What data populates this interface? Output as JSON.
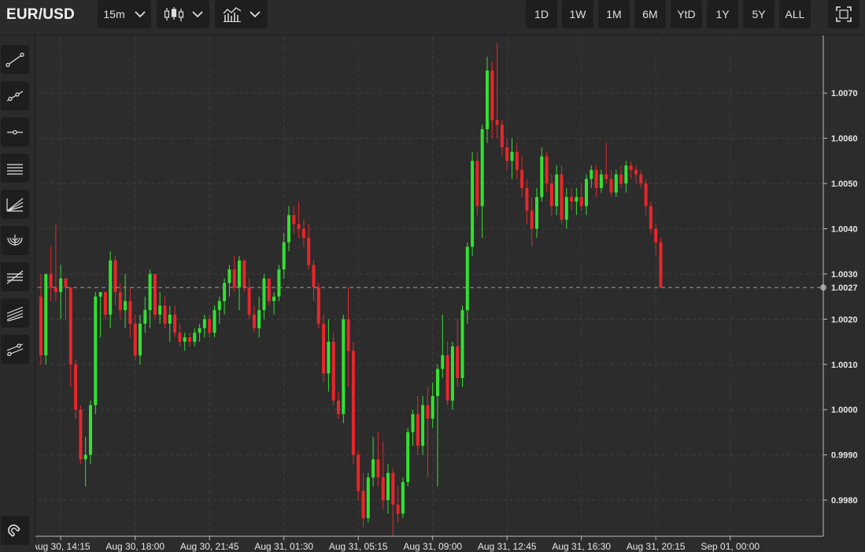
{
  "header": {
    "symbol": "EUR/USD",
    "interval": "15m",
    "chart_type_icon": "candlestick-icon",
    "indicators_icon": "indicators-icon",
    "ranges": [
      "1D",
      "1W",
      "1M",
      "6M",
      "YtD",
      "1Y",
      "5Y",
      "ALL"
    ],
    "fullscreen_icon": "fullscreen-icon"
  },
  "sidebar": {
    "tools": [
      "trend-line-icon",
      "ray-icon",
      "horizontal-line-icon",
      "parallel-channel-icon",
      "fib-fan-icon",
      "fib-arc-icon",
      "fib-retracement-icon",
      "fib-channel-icon",
      "regression-trend-icon"
    ],
    "magnet_icon": "magnet-icon"
  },
  "colors": {
    "up": "#32e132",
    "down": "#e8262b",
    "background": "#2c2c2c",
    "grid": "#3e3e3e",
    "price_line": "#8a8a8a"
  },
  "chart_data": {
    "type": "candlestick",
    "title": "EUR/USD",
    "interval": "15m",
    "last_price": "1.0027",
    "last_price_value": 1.0027,
    "ylim": [
      0.9972,
      1.0081
    ],
    "y_ticks": [
      {
        "value": 0.998,
        "label": "0.9980"
      },
      {
        "value": 0.999,
        "label": "0.9990"
      },
      {
        "value": 1.0,
        "label": "1.0000"
      },
      {
        "value": 1.001,
        "label": "1.0010"
      },
      {
        "value": 1.002,
        "label": "1.0020"
      },
      {
        "value": 1.003,
        "label": "1.0030"
      },
      {
        "value": 1.004,
        "label": "1.0040"
      },
      {
        "value": 1.005,
        "label": "1.0050"
      },
      {
        "value": 1.006,
        "label": "1.0060"
      },
      {
        "value": 1.007,
        "label": "1.0070"
      }
    ],
    "x_ticks": [
      {
        "index": 4,
        "label": "Aug 30, 14:15"
      },
      {
        "index": 19,
        "label": "Aug 30, 18:00"
      },
      {
        "index": 34,
        "label": "Aug 30, 21:45"
      },
      {
        "index": 49,
        "label": "Aug 31, 01:30"
      },
      {
        "index": 64,
        "label": "Aug 31, 05:15"
      },
      {
        "index": 79,
        "label": "Aug 31, 09:00"
      },
      {
        "index": 94,
        "label": "Aug 31, 12:45"
      },
      {
        "index": 109,
        "label": "Aug 31, 16:30"
      },
      {
        "index": 124,
        "label": "Aug 31, 20:15"
      },
      {
        "index": 139,
        "label": "Sep 01, 00:00"
      }
    ],
    "grid": true,
    "candles": [
      [
        1.0025,
        1.003,
        1.001,
        1.0012
      ],
      [
        1.0012,
        1.003,
        1.001,
        1.003
      ],
      [
        1.003,
        1.0036,
        1.0024,
        1.0027
      ],
      [
        1.0027,
        1.0041,
        1.0024,
        1.0026
      ],
      [
        1.0026,
        1.0032,
        1.002,
        1.0029
      ],
      [
        1.0029,
        1.0029,
        1.002,
        1.0027
      ],
      [
        1.0027,
        1.0027,
        1.0005,
        1.001
      ],
      [
        1.001,
        1.0011,
        0.9998,
        1.0
      ],
      [
        1.0,
        1.0001,
        0.9988,
        0.9989
      ],
      [
        0.9989,
        0.9994,
        0.9983,
        0.999
      ],
      [
        0.999,
        1.0002,
        0.9988,
        1.0001
      ],
      [
        1.0001,
        1.0026,
        0.9999,
        1.0025
      ],
      [
        1.0025,
        1.0026,
        1.0016,
        1.0026
      ],
      [
        1.0026,
        1.0026,
        1.002,
        1.0021
      ],
      [
        1.0021,
        1.0035,
        1.0018,
        1.0033
      ],
      [
        1.0033,
        1.0034,
        1.0023,
        1.0026
      ],
      [
        1.0026,
        1.0028,
        1.002,
        1.0022
      ],
      [
        1.0022,
        1.003,
        1.0018,
        1.0024
      ],
      [
        1.0024,
        1.0027,
        1.0016,
        1.0019
      ],
      [
        1.0019,
        1.0021,
        1.0011,
        1.0012
      ],
      [
        1.0012,
        1.0021,
        1.001,
        1.0019
      ],
      [
        1.0019,
        1.0025,
        1.0017,
        1.0022
      ],
      [
        1.0022,
        1.0031,
        1.0018,
        1.003
      ],
      [
        1.003,
        1.003,
        1.002,
        1.0021
      ],
      [
        1.0021,
        1.0026,
        1.0019,
        1.0023
      ],
      [
        1.0023,
        1.0025,
        1.0018,
        1.0019
      ],
      [
        1.0019,
        1.0023,
        1.0015,
        1.0021
      ],
      [
        1.0021,
        1.0023,
        1.0016,
        1.0017
      ],
      [
        1.0017,
        1.0019,
        1.0014,
        1.0015
      ],
      [
        1.0015,
        1.0017,
        1.0013,
        1.0016
      ],
      [
        1.0016,
        1.0017,
        1.0014,
        1.0015
      ],
      [
        1.0015,
        1.0018,
        1.0014,
        1.0017
      ],
      [
        1.0017,
        1.0019,
        1.0015,
        1.0018
      ],
      [
        1.0018,
        1.0021,
        1.0016,
        1.002
      ],
      [
        1.002,
        1.0021,
        1.0016,
        1.0017
      ],
      [
        1.0017,
        1.0023,
        1.0016,
        1.0022
      ],
      [
        1.0022,
        1.0025,
        1.0019,
        1.0024
      ],
      [
        1.0024,
        1.0029,
        1.0021,
        1.0028
      ],
      [
        1.0028,
        1.0032,
        1.0025,
        1.0031
      ],
      [
        1.0031,
        1.0034,
        1.0026,
        1.0027
      ],
      [
        1.0027,
        1.0034,
        1.0022,
        1.0033
      ],
      [
        1.0033,
        1.0033,
        1.0026,
        1.0027
      ],
      [
        1.0027,
        1.0029,
        1.002,
        1.0021
      ],
      [
        1.0021,
        1.0023,
        1.0017,
        1.0018
      ],
      [
        1.0018,
        1.0025,
        1.0016,
        1.0022
      ],
      [
        1.0022,
        1.003,
        1.002,
        1.0029
      ],
      [
        1.0029,
        1.0029,
        1.0023,
        1.0024
      ],
      [
        1.0024,
        1.0026,
        1.0021,
        1.0025
      ],
      [
        1.0025,
        1.0032,
        1.0024,
        1.0031
      ],
      [
        1.0031,
        1.0039,
        1.0029,
        1.0037
      ],
      [
        1.0037,
        1.0045,
        1.0035,
        1.0043
      ],
      [
        1.0043,
        1.0045,
        1.0039,
        1.0041
      ],
      [
        1.0041,
        1.0046,
        1.0038,
        1.004
      ],
      [
        1.004,
        1.0042,
        1.0036,
        1.0038
      ],
      [
        1.0038,
        1.0041,
        1.0031,
        1.0032
      ],
      [
        1.0032,
        1.0033,
        1.0024,
        1.0027
      ],
      [
        1.0027,
        1.0028,
        1.0018,
        1.0019
      ],
      [
        1.0019,
        1.0021,
        1.0006,
        1.0008
      ],
      [
        1.0008,
        1.002,
        1.0004,
        1.0015
      ],
      [
        1.0015,
        1.0017,
        1.0001,
        1.0002
      ],
      [
        1.0002,
        1.0004,
        0.9998,
        0.9999
      ],
      [
        0.9999,
        1.0021,
        0.9997,
        1.002
      ],
      [
        1.002,
        1.0027,
        1.0005,
        1.0013
      ],
      [
        1.0013,
        1.0015,
        0.9988,
        0.999
      ],
      [
        0.999,
        0.9991,
        0.998,
        0.9982
      ],
      [
        0.9982,
        0.9986,
        0.9974,
        0.9976
      ],
      [
        0.9976,
        0.9986,
        0.9975,
        0.9985
      ],
      [
        0.9985,
        0.9994,
        0.9983,
        0.9989
      ],
      [
        0.9989,
        0.9995,
        0.9983,
        0.9985
      ],
      [
        0.9985,
        0.9993,
        0.9978,
        0.998
      ],
      [
        0.998,
        0.9988,
        0.9977,
        0.9986
      ],
      [
        0.9986,
        0.9987,
        0.9972,
        0.9979
      ],
      [
        0.9979,
        0.9983,
        0.9975,
        0.9977
      ],
      [
        0.9977,
        0.9985,
        0.9976,
        0.9984
      ],
      [
        0.9984,
        0.9996,
        0.9983,
        0.9995
      ],
      [
        0.9995,
        1.0,
        0.9992,
        0.9999
      ],
      [
        0.9999,
        1.0003,
        0.999,
        0.9992
      ],
      [
        0.9992,
        1.0003,
        0.999,
        1.0001
      ],
      [
        1.0001,
        1.0005,
        0.9985,
        0.9998
      ],
      [
        0.9998,
        1.0006,
        0.9996,
        1.0003
      ],
      [
        1.0003,
        1.001,
        0.9983,
        1.0009
      ],
      [
        1.0009,
        1.0021,
        1.0007,
        1.0012
      ],
      [
        1.0012,
        1.0015,
        1.0001,
        1.0002
      ],
      [
        1.0002,
        1.0015,
        1.0,
        1.0014
      ],
      [
        1.0014,
        1.002,
        1.0005,
        1.0007
      ],
      [
        1.0007,
        1.0023,
        1.0005,
        1.0022
      ],
      [
        1.0022,
        1.0037,
        1.0019,
        1.0036
      ],
      [
        1.0036,
        1.0057,
        1.0034,
        1.0055
      ],
      [
        1.0055,
        1.0057,
        1.0043,
        1.0045
      ],
      [
        1.0045,
        1.0063,
        1.0038,
        1.0062
      ],
      [
        1.0062,
        1.0078,
        1.0059,
        1.0075
      ],
      [
        1.0075,
        1.0077,
        1.006,
        1.0064
      ],
      [
        1.0064,
        1.0081,
        1.006,
        1.0063
      ],
      [
        1.0063,
        1.0064,
        1.0056,
        1.0058
      ],
      [
        1.0058,
        1.006,
        1.0053,
        1.0055
      ],
      [
        1.0055,
        1.006,
        1.0051,
        1.0057
      ],
      [
        1.0057,
        1.0059,
        1.0051,
        1.0053
      ],
      [
        1.0053,
        1.0056,
        1.0047,
        1.0049
      ],
      [
        1.0049,
        1.0051,
        1.0041,
        1.0044
      ],
      [
        1.0044,
        1.0047,
        1.0036,
        1.004
      ],
      [
        1.004,
        1.0049,
        1.0038,
        1.0047
      ],
      [
        1.0047,
        1.0058,
        1.0046,
        1.0056
      ],
      [
        1.0056,
        1.0057,
        1.0048,
        1.005
      ],
      [
        1.005,
        1.0052,
        1.0043,
        1.0045
      ],
      [
        1.0045,
        1.0054,
        1.0043,
        1.0052
      ],
      [
        1.0052,
        1.0054,
        1.0041,
        1.0042
      ],
      [
        1.0042,
        1.0049,
        1.004,
        1.0047
      ],
      [
        1.0047,
        1.0049,
        1.0044,
        1.0046
      ],
      [
        1.0046,
        1.0049,
        1.0043,
        1.0047
      ],
      [
        1.0047,
        1.005,
        1.0044,
        1.0045
      ],
      [
        1.0045,
        1.0052,
        1.0043,
        1.0051
      ],
      [
        1.0051,
        1.0054,
        1.0049,
        1.0053
      ],
      [
        1.0053,
        1.0054,
        1.0047,
        1.0049
      ],
      [
        1.0049,
        1.0053,
        1.0048,
        1.0052
      ],
      [
        1.0052,
        1.0059,
        1.005,
        1.0051
      ],
      [
        1.0051,
        1.0053,
        1.0047,
        1.0048
      ],
      [
        1.0048,
        1.0053,
        1.0047,
        1.0052
      ],
      [
        1.0052,
        1.0054,
        1.0049,
        1.005
      ],
      [
        1.005,
        1.0055,
        1.0048,
        1.0054
      ],
      [
        1.0054,
        1.0055,
        1.0051,
        1.0053
      ],
      [
        1.0053,
        1.0054,
        1.005,
        1.0052
      ],
      [
        1.0052,
        1.0053,
        1.0049,
        1.005
      ],
      [
        1.005,
        1.0051,
        1.0043,
        1.0045
      ],
      [
        1.0045,
        1.0046,
        1.0039,
        1.004
      ],
      [
        1.004,
        1.0041,
        1.0034,
        1.0037
      ],
      [
        1.0037,
        1.0038,
        1.0027,
        1.0027
      ]
    ]
  }
}
